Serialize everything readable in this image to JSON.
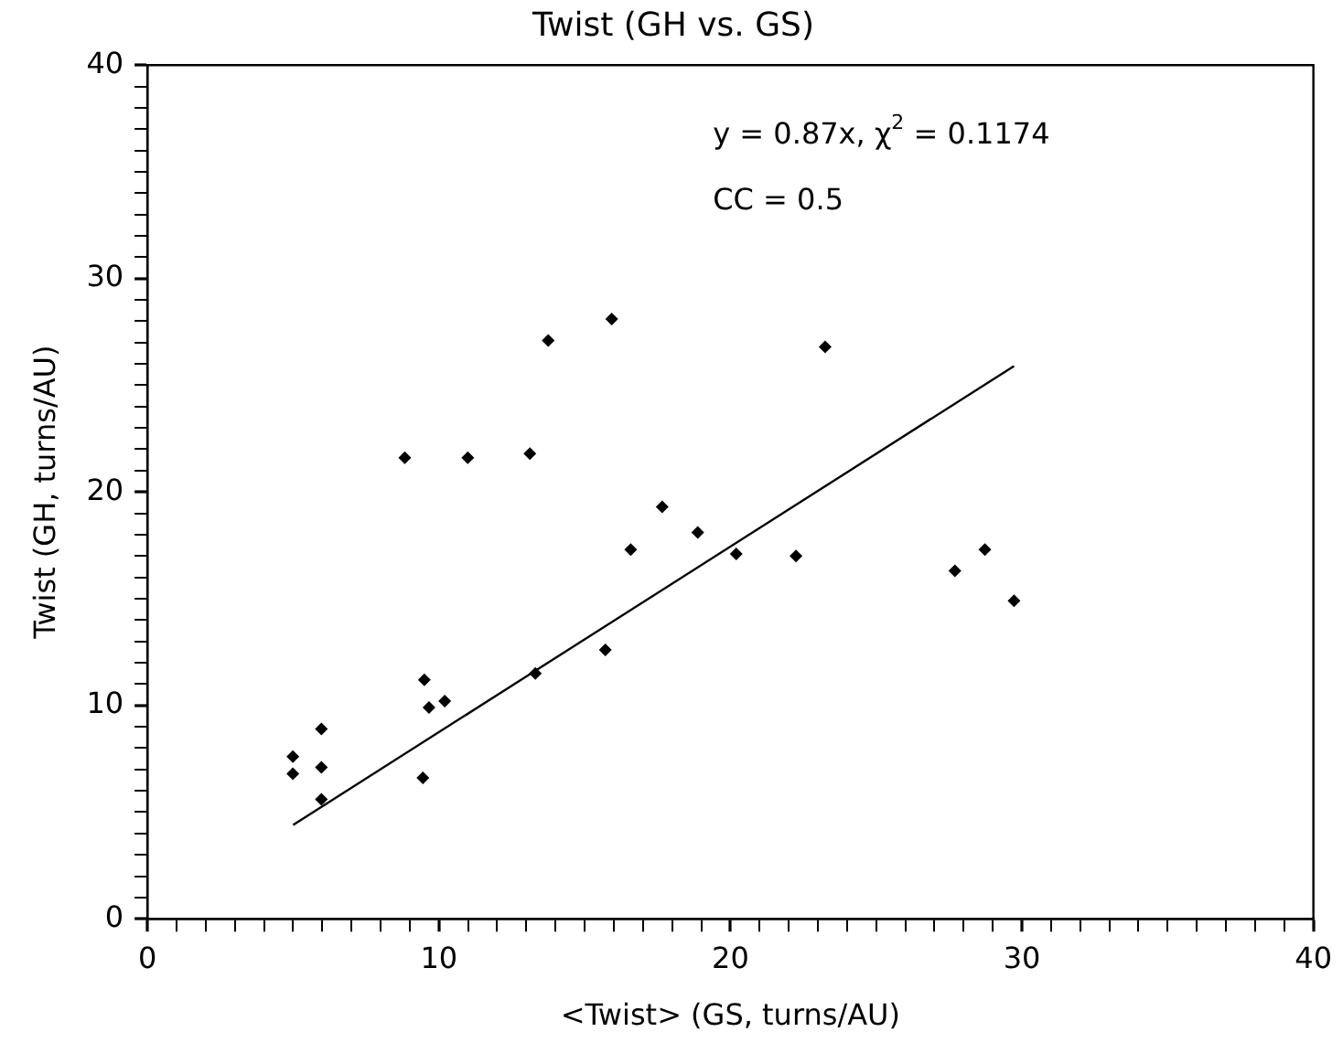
{
  "chart_data": {
    "type": "scatter",
    "title": "Twist (GH vs. GS)",
    "xlabel": "<Twist> (GS, turns/AU)",
    "ylabel": "Twist (GH, turns/AU)",
    "annotations": [
      "y = 0.87x, χ$^{2}$ = 0.1174",
      "CC = 0.5"
    ],
    "marker": "diamond",
    "grid": false,
    "legend": false,
    "xlim": [
      0,
      40
    ],
    "ylim": [
      0,
      40
    ],
    "xticks": [
      0,
      {
        "value": 1,
        "label": null
      },
      {
        "value": 2,
        "label": null
      },
      {
        "value": 3,
        "label": null
      },
      {
        "value": 4,
        "label": null
      },
      {
        "value": 5,
        "label": null
      },
      {
        "value": 6,
        "label": null
      },
      {
        "value": 7,
        "label": null
      },
      {
        "value": 8,
        "label": null
      },
      {
        "value": 9,
        "label": null
      },
      10,
      {
        "value": 11,
        "label": null
      },
      {
        "value": 12,
        "label": null
      },
      {
        "value": 13,
        "label": null
      },
      {
        "value": 14,
        "label": null
      },
      {
        "value": 15,
        "label": null
      },
      {
        "value": 16,
        "label": null
      },
      {
        "value": 17,
        "label": null
      },
      {
        "value": 18,
        "label": null
      },
      {
        "value": 19,
        "label": null
      },
      20,
      {
        "value": 21,
        "label": null
      },
      {
        "value": 22,
        "label": null
      },
      {
        "value": 23,
        "label": null
      },
      {
        "value": 24,
        "label": null
      },
      {
        "value": 25,
        "label": null
      },
      {
        "value": 26,
        "label": null
      },
      {
        "value": 27,
        "label": null
      },
      {
        "value": 28,
        "label": null
      },
      {
        "value": 29,
        "label": null
      },
      30,
      {
        "value": 31,
        "label": null
      },
      {
        "value": 32,
        "label": null
      },
      {
        "value": 33,
        "label": null
      },
      {
        "value": 34,
        "label": null
      },
      {
        "value": 35,
        "label": null
      },
      {
        "value": 36,
        "label": null
      },
      {
        "value": 37,
        "label": null
      },
      {
        "value": 38,
        "label": null
      },
      {
        "value": 39,
        "label": null
      },
      40
    ],
    "yticks": [
      0,
      {
        "value": 1,
        "label": null
      },
      {
        "value": 2,
        "label": null
      },
      {
        "value": 3,
        "label": null
      },
      {
        "value": 4,
        "label": null
      },
      {
        "value": 5,
        "label": null
      },
      {
        "value": 6,
        "label": null
      },
      {
        "value": 7,
        "label": null
      },
      {
        "value": 8,
        "label": null
      },
      {
        "value": 9,
        "label": null
      },
      10,
      {
        "value": 11,
        "label": null
      },
      {
        "value": 12,
        "label": null
      },
      {
        "value": 13,
        "label": null
      },
      {
        "value": 14,
        "label": null
      },
      {
        "value": 15,
        "label": null
      },
      {
        "value": 16,
        "label": null
      },
      {
        "value": 17,
        "label": null
      },
      {
        "value": 18,
        "label": null
      },
      {
        "value": 19,
        "label": null
      },
      20,
      {
        "value": 21,
        "label": null
      },
      {
        "value": 22,
        "label": null
      },
      {
        "value": 23,
        "label": null
      },
      {
        "value": 24,
        "label": null
      },
      {
        "value": 25,
        "label": null
      },
      {
        "value": 26,
        "label": null
      },
      {
        "value": 27,
        "label": null
      },
      {
        "value": 28,
        "label": null
      },
      {
        "value": 29,
        "label": null
      },
      30,
      {
        "value": 31,
        "label": null
      },
      {
        "value": 32,
        "label": null
      },
      {
        "value": 33,
        "label": null
      },
      {
        "value": 34,
        "label": null
      },
      {
        "value": 35,
        "label": null
      },
      {
        "value": 36,
        "label": null
      },
      {
        "value": 37,
        "label": null
      },
      {
        "value": 38,
        "label": null
      },
      {
        "value": 39,
        "label": null
      },
      40
    ],
    "series": [
      {
        "color": "#000000",
        "x": [
          4.99,
          4.99,
          5.97,
          5.97,
          5.97,
          8.83,
          9.5,
          9.66,
          10.2,
          9.45,
          10.99,
          13.12,
          13.31,
          13.75,
          15.93,
          15.71,
          16.58,
          17.66,
          18.88,
          20.2,
          22.25,
          23.25,
          27.7,
          28.73,
          29.73
        ],
        "values": [
          7.6,
          6.8,
          8.9,
          7.1,
          5.6,
          21.6,
          11.2,
          9.9,
          10.2,
          6.6,
          21.6,
          21.8,
          11.5,
          27.1,
          28.1,
          12.6,
          17.3,
          19.3,
          18.1,
          17.1,
          17.0,
          26.8,
          16.3,
          17.3,
          14.9
        ]
      },
      {
        "type": "line",
        "color": "#000000",
        "marker": "none",
        "x": [
          5,
          29.73
        ],
        "values": [
          4.4,
          25.9
        ]
      }
    ]
  }
}
